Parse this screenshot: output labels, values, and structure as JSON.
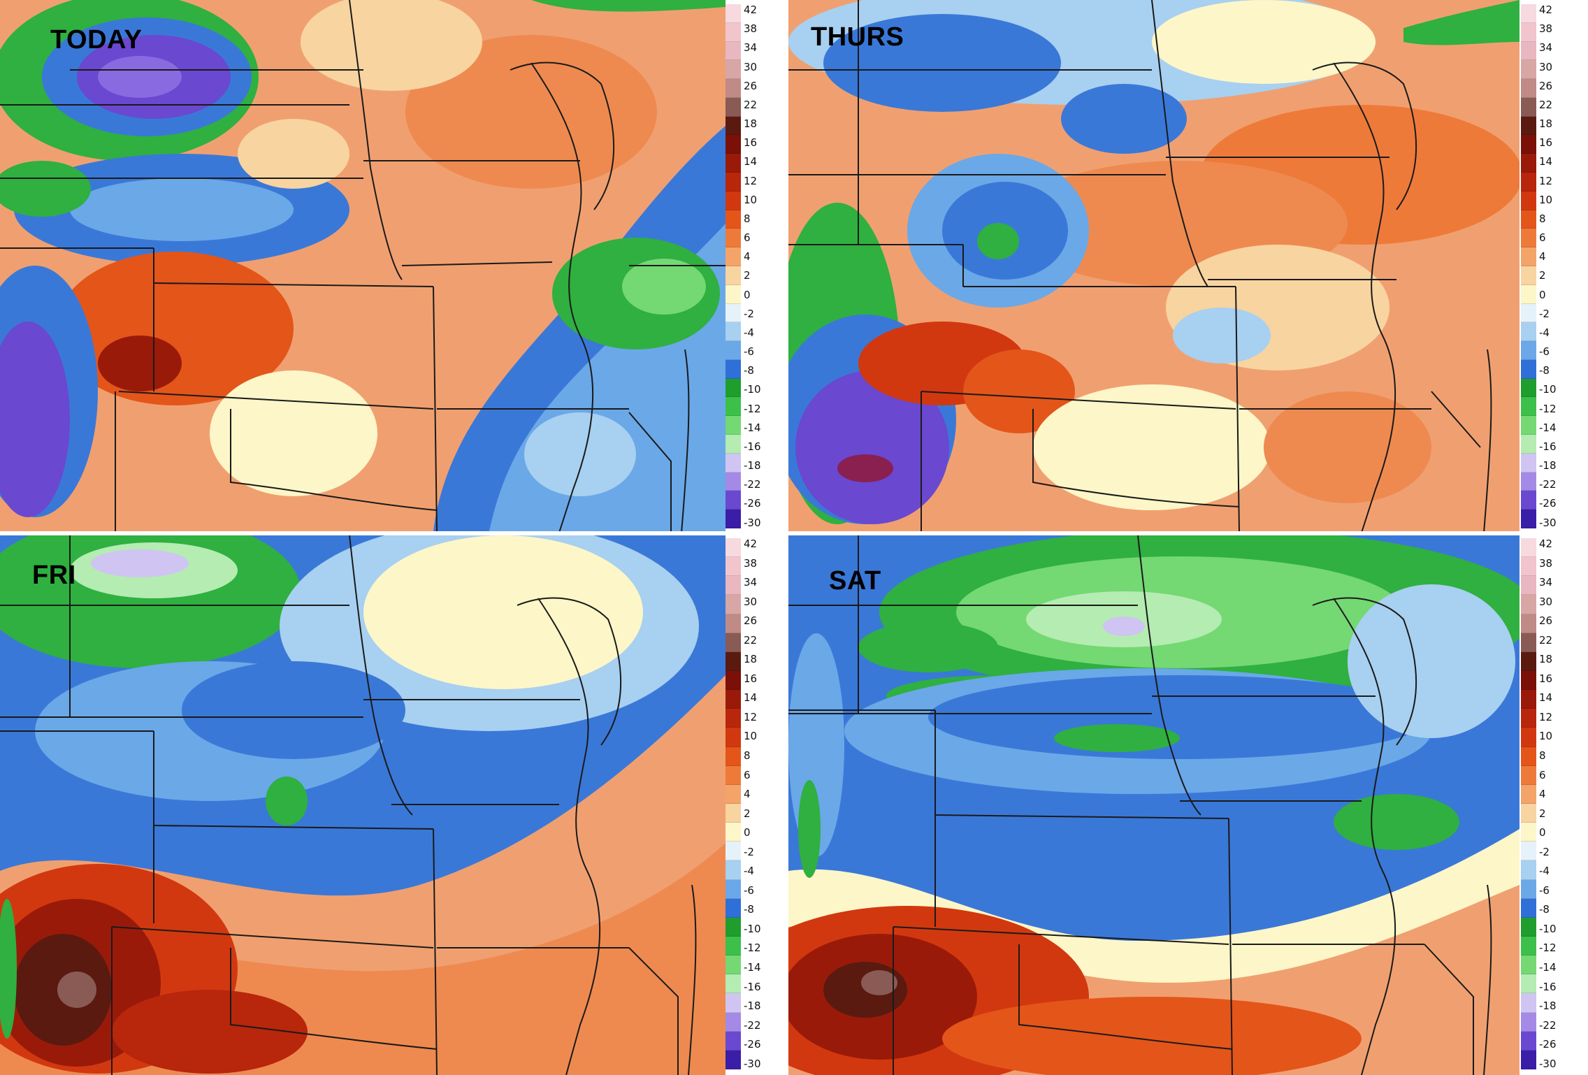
{
  "panels": [
    {
      "label": "TODAY"
    },
    {
      "label": "THURS"
    },
    {
      "label": "FRI"
    },
    {
      "label": "SAT"
    }
  ],
  "colorbar": {
    "ticks": [
      "42",
      "38",
      "34",
      "30",
      "26",
      "22",
      "18",
      "16",
      "14",
      "12",
      "10",
      "8",
      "6",
      "4",
      "2",
      "0",
      "-2",
      "-4",
      "-6",
      "-8",
      "-10",
      "-12",
      "-14",
      "-16",
      "-18",
      "-22",
      "-26",
      "-30"
    ],
    "colors": [
      "#f7d9e0",
      "#f2c4cc",
      "#e8b7bf",
      "#d9a6a6",
      "#c08a86",
      "#8a5a55",
      "#5a1a10",
      "#7a1008",
      "#9a1a0a",
      "#b8260c",
      "#d2380f",
      "#e4551a",
      "#ee7a3a",
      "#f4a468",
      "#f8d4a0",
      "#fdf6c8",
      "#e6f2fa",
      "#a8d0f0",
      "#6aa8e8",
      "#2f6fd8",
      "#1f9e2e",
      "#3cc04a",
      "#74d873",
      "#b4ecb2",
      "#d0c4f2",
      "#a48ae6",
      "#6a48d0",
      "#3a1ea8"
    ]
  },
  "colors": {
    "warm_base": "#f0a070",
    "cool_base": "#3a78d8",
    "green": "#2fb040",
    "purple": "#6a4ad0",
    "dark_red": "#7a1008",
    "border": "#1a1a1a"
  }
}
